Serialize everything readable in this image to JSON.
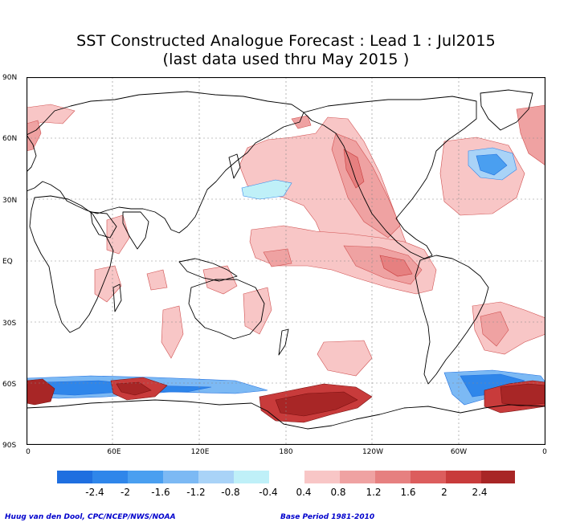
{
  "title": {
    "line1": "SST Constructed Analogue Forecast : Lead 1 : Jul2015",
    "line2": "(last data used thru May 2015 )"
  },
  "axes": {
    "lat_labels": [
      "90N",
      "60N",
      "30N",
      "EQ",
      "30S",
      "60S",
      "90S"
    ],
    "lon_labels": [
      "0",
      "60E",
      "120E",
      "180",
      "120W",
      "60W",
      "0"
    ]
  },
  "colorbar": {
    "labels": [
      "-2.4",
      "-2",
      "-1.6",
      "-1.2",
      "-0.8",
      "-0.4",
      "0.4",
      "0.8",
      "1.2",
      "1.6",
      "2",
      "2.4"
    ],
    "negative_colors": [
      "#1f6fe0",
      "#2f86ea",
      "#4a9ff0",
      "#7cb9f4",
      "#a9d3f7",
      "#bff0f8"
    ],
    "positive_colors": [
      "#f8c6c6",
      "#efa2a2",
      "#e68080",
      "#dc5d5d",
      "#c83b3b",
      "#a82626"
    ]
  },
  "credits": {
    "left": "Huug van den Dool, CPC/NCEP/NWS/NOAA",
    "right": "Base Period 1981-2010"
  }
}
